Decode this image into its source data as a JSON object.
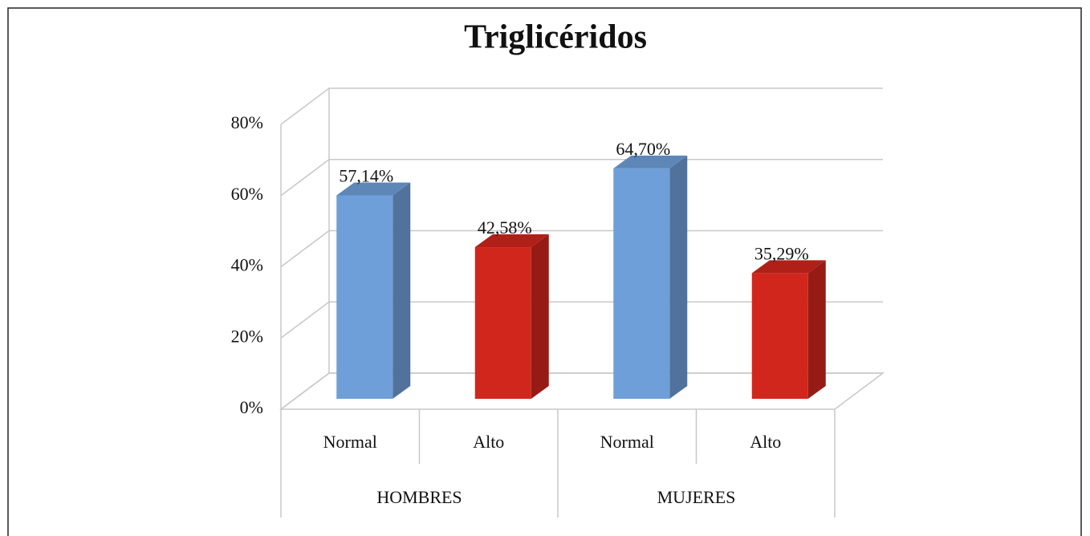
{
  "chart_data": {
    "type": "bar3d",
    "title": "Triglicéridos",
    "categories": [
      "Normal",
      "Alto",
      "Normal",
      "Alto"
    ],
    "groups": [
      "HOMBRES",
      "MUJERES"
    ],
    "values": [
      57.14,
      42.58,
      64.7,
      35.29
    ],
    "value_labels": [
      "57,14%",
      "42,58%",
      "64,70%",
      "35,29%"
    ],
    "colors": [
      "#6f9fd8",
      "#d0261c",
      "#6f9fd8",
      "#d0261c"
    ],
    "ylim": [
      0,
      80
    ],
    "yticks": [
      {
        "value": 0,
        "label": "0%"
      },
      {
        "value": 20,
        "label": "20%"
      },
      {
        "value": 40,
        "label": "40%"
      },
      {
        "value": 60,
        "label": "60%"
      },
      {
        "value": 80,
        "label": "80%"
      }
    ],
    "grid": true
  }
}
